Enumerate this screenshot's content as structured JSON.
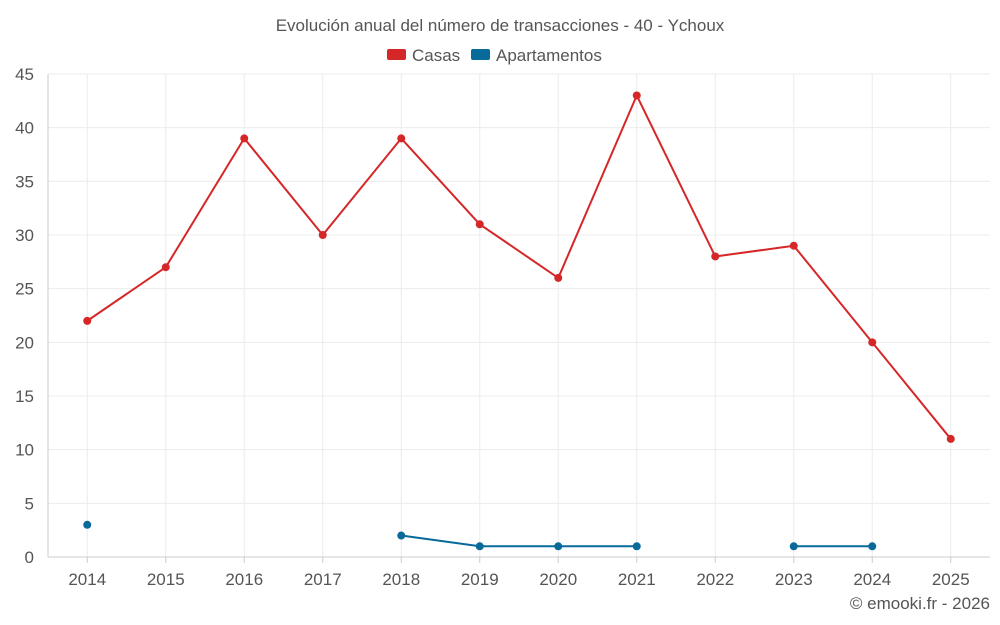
{
  "chart_data": {
    "type": "line",
    "title": "Evolución anual del número de transacciones - 40 - Ychoux",
    "categories": [
      "2014",
      "2015",
      "2016",
      "2017",
      "2018",
      "2019",
      "2020",
      "2021",
      "2022",
      "2023",
      "2024",
      "2025"
    ],
    "ylim": [
      0,
      45
    ],
    "yticks": [
      0,
      5,
      10,
      15,
      20,
      25,
      30,
      35,
      40,
      45
    ],
    "grid": true,
    "legend_position": "top-center",
    "series": [
      {
        "name": "Casas",
        "color": "#d62728",
        "values": [
          22,
          27,
          39,
          30,
          39,
          31,
          26,
          43,
          28,
          29,
          20,
          11
        ]
      },
      {
        "name": "Apartamentos",
        "color": "#086a9b",
        "values": [
          3,
          null,
          null,
          null,
          2,
          1,
          1,
          1,
          null,
          1,
          1,
          null
        ]
      }
    ]
  },
  "credit": "© emooki.fr - 2026"
}
